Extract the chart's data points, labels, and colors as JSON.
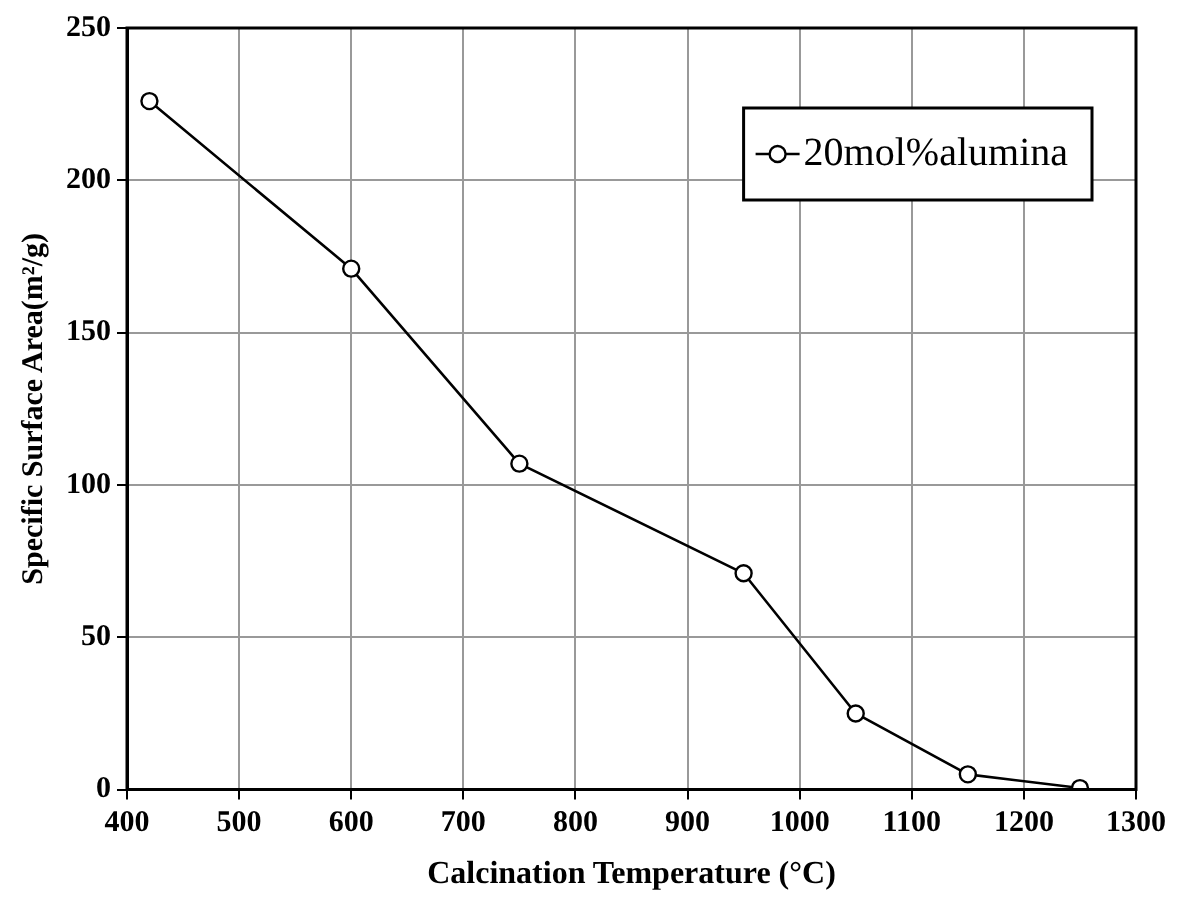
{
  "chart_data": {
    "type": "line",
    "xlabel": "Calcination Temperature (°C)",
    "ylabel": "Specific Surface Area(m²/g)",
    "x": [
      420,
      600,
      750,
      950,
      1050,
      1150,
      1250
    ],
    "series": [
      {
        "name": "20mol%alumina",
        "color": "#000000",
        "values": [
          226,
          171,
          107,
          71,
          25,
          5,
          0.5
        ]
      }
    ],
    "xlim": [
      400,
      1300
    ],
    "xticks": [
      400,
      500,
      600,
      700,
      800,
      900,
      1000,
      1100,
      1200,
      1300
    ],
    "ylim": [
      0,
      250
    ],
    "yticks": [
      0,
      50,
      100,
      150,
      200,
      250
    ],
    "grid": true,
    "legend": "top right",
    "marker": "circle",
    "line_style": "solid"
  }
}
